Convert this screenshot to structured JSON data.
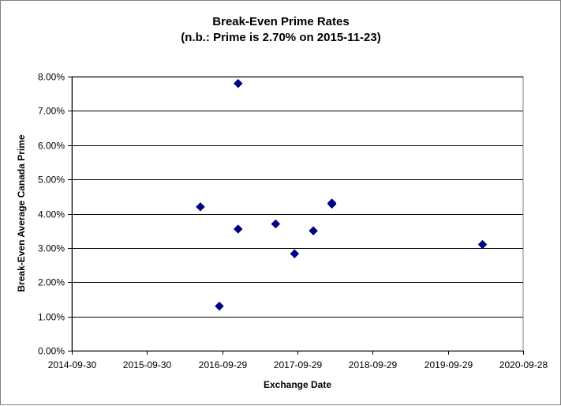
{
  "chart_data": {
    "type": "scatter",
    "title": "Break-Even Prime Rates",
    "subtitle": "(n.b.: Prime is 2.70% on 2015-11-23)",
    "xlabel": "Exchange Date",
    "ylabel": "Break-Even Average Canada Prime",
    "x_type": "date",
    "xlim": [
      "2014-09-30",
      "2020-09-28"
    ],
    "ylim": [
      0.0,
      0.08
    ],
    "x_ticks": [
      "2014-09-30",
      "2015-09-30",
      "2016-09-29",
      "2017-09-29",
      "2018-09-29",
      "2019-09-29",
      "2020-09-28"
    ],
    "y_ticks": [
      0.0,
      0.01,
      0.02,
      0.03,
      0.04,
      0.05,
      0.06,
      0.07,
      0.08
    ],
    "y_tick_labels": [
      "0.00%",
      "1.00%",
      "2.00%",
      "3.00%",
      "4.00%",
      "5.00%",
      "6.00%",
      "7.00%",
      "8.00%"
    ],
    "grid": "horizontal",
    "legend": "none",
    "marker": "diamond",
    "marker_color": "#000080",
    "points": [
      {
        "x": "2016-06-15",
        "y": 0.042
      },
      {
        "x": "2016-09-15",
        "y": 0.013
      },
      {
        "x": "2016-12-15",
        "y": 0.078
      },
      {
        "x": "2016-12-15",
        "y": 0.0355
      },
      {
        "x": "2017-06-15",
        "y": 0.037
      },
      {
        "x": "2017-09-15",
        "y": 0.0283
      },
      {
        "x": "2017-12-15",
        "y": 0.035
      },
      {
        "x": "2018-03-15",
        "y": 0.0431
      },
      {
        "x": "2018-03-15",
        "y": 0.0428
      },
      {
        "x": "2020-03-15",
        "y": 0.031
      }
    ]
  }
}
